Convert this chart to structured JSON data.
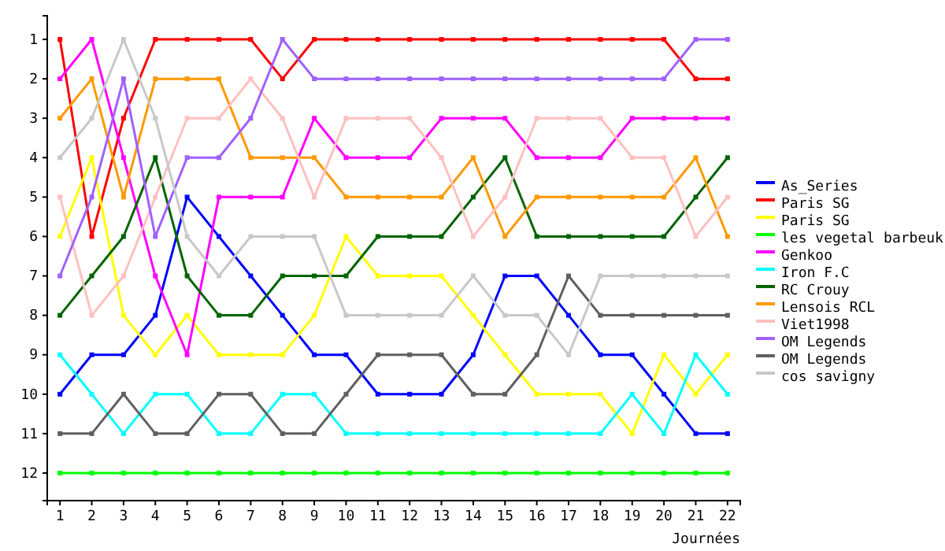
{
  "chart_data": {
    "type": "line",
    "xlabel": "Journées",
    "x": [
      1,
      2,
      3,
      4,
      5,
      6,
      7,
      8,
      9,
      10,
      11,
      12,
      13,
      14,
      15,
      16,
      17,
      18,
      19,
      20,
      21,
      22
    ],
    "xlim": [
      0.6,
      22.4
    ],
    "xticks": [
      1,
      2,
      3,
      4,
      5,
      6,
      7,
      8,
      9,
      10,
      11,
      12,
      13,
      14,
      15,
      16,
      17,
      18,
      19,
      20,
      21,
      22
    ],
    "ylim": [
      12.7,
      0.4
    ],
    "yticks": [
      1,
      2,
      3,
      4,
      5,
      6,
      7,
      8,
      9,
      10,
      11,
      12
    ],
    "grid": false,
    "legend": "right",
    "marker": "square",
    "line_style": "solid",
    "series": [
      {
        "name": "As_Series",
        "color": "#0000ff",
        "values": [
          10,
          9,
          9,
          8,
          5,
          6,
          7,
          8,
          9,
          9,
          10,
          10,
          10,
          9,
          7,
          7,
          8,
          9,
          9,
          10,
          11,
          11
        ]
      },
      {
        "name": "Paris SG",
        "color": "#ff0000",
        "values": [
          1,
          6,
          3,
          1,
          1,
          1,
          1,
          2,
          1,
          1,
          1,
          1,
          1,
          1,
          1,
          1,
          1,
          1,
          1,
          1,
          2,
          2
        ]
      },
      {
        "name": "Paris SG",
        "color": "#ffff00",
        "values": [
          6,
          4,
          8,
          9,
          8,
          9,
          9,
          9,
          8,
          6,
          7,
          7,
          7,
          8,
          9,
          10,
          10,
          10,
          11,
          9,
          10,
          9
        ]
      },
      {
        "name": "les vegetal barbeuk",
        "color": "#00ff00",
        "values": [
          12,
          12,
          12,
          12,
          12,
          12,
          12,
          12,
          12,
          12,
          12,
          12,
          12,
          12,
          12,
          12,
          12,
          12,
          12,
          12,
          12,
          12
        ]
      },
      {
        "name": "Genkoo",
        "color": "#ff00ff",
        "values": [
          2,
          1,
          4,
          7,
          9,
          5,
          5,
          5,
          3,
          4,
          4,
          4,
          3,
          3,
          3,
          4,
          4,
          4,
          3,
          3,
          3,
          3
        ]
      },
      {
        "name": "Iron F.C",
        "color": "#00ffff",
        "values": [
          9,
          10,
          11,
          10,
          10,
          11,
          11,
          10,
          10,
          11,
          11,
          11,
          11,
          11,
          11,
          11,
          11,
          11,
          10,
          11,
          9,
          10
        ]
      },
      {
        "name": "RC Crouy",
        "color": "#006400",
        "values": [
          8,
          7,
          6,
          4,
          7,
          8,
          8,
          7,
          7,
          7,
          6,
          6,
          6,
          5,
          4,
          6,
          6,
          6,
          6,
          6,
          5,
          4
        ]
      },
      {
        "name": "Lensois RCL",
        "color": "#ff9900",
        "values": [
          3,
          2,
          5,
          2,
          2,
          2,
          4,
          4,
          4,
          5,
          5,
          5,
          5,
          4,
          6,
          5,
          5,
          5,
          5,
          5,
          4,
          6
        ]
      },
      {
        "name": "Viet1998",
        "color": "#ffc0c0",
        "values": [
          5,
          8,
          7,
          5,
          3,
          3,
          2,
          3,
          5,
          3,
          3,
          3,
          4,
          6,
          5,
          3,
          3,
          3,
          4,
          4,
          6,
          5
        ]
      },
      {
        "name": "OM Legends",
        "color": "#a060ff",
        "values": [
          7,
          5,
          2,
          6,
          4,
          4,
          3,
          1,
          2,
          2,
          2,
          2,
          2,
          2,
          2,
          2,
          2,
          2,
          2,
          2,
          1,
          1
        ]
      },
      {
        "name": "OM Legends",
        "color": "#606060",
        "values": [
          11,
          11,
          10,
          11,
          11,
          10,
          10,
          11,
          11,
          10,
          9,
          9,
          9,
          10,
          10,
          9,
          7,
          8,
          8,
          8,
          8,
          8
        ]
      },
      {
        "name": "cos savigny",
        "color": "#c8c8c8",
        "values": [
          4,
          3,
          1,
          3,
          6,
          7,
          6,
          6,
          6,
          8,
          8,
          8,
          8,
          7,
          8,
          8,
          9,
          7,
          7,
          7,
          7,
          7
        ]
      }
    ]
  }
}
